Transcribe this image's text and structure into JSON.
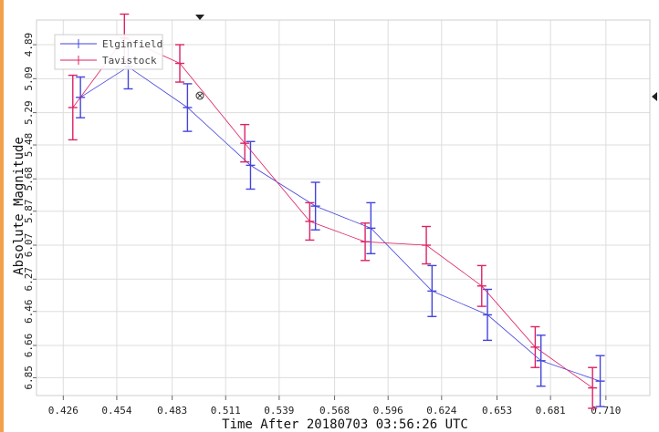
{
  "chart_data": {
    "type": "line",
    "xlabel": "Time After 20180703 03:56:26 UTC",
    "ylabel": "Absolute Magnitude",
    "x_ticks": [
      "0.426",
      "0.454",
      "0.483",
      "0.511",
      "0.539",
      "0.568",
      "0.596",
      "0.624",
      "0.653",
      "0.681",
      "0.710"
    ],
    "y_ticks": [
      "4.89",
      "5.09",
      "5.29",
      "5.48",
      "5.68",
      "5.87",
      "6.07",
      "6.27",
      "6.46",
      "6.66",
      "6.85"
    ],
    "xlim": [
      0.412,
      0.733
    ],
    "ylim": [
      4.745,
      6.955
    ],
    "y_inverted": true,
    "grid": true,
    "legend_position": "top-left",
    "series": [
      {
        "name": "Elginfield",
        "color": "#4444dd",
        "points": [
          {
            "x": 0.435,
            "y": 5.2,
            "err": 0.12
          },
          {
            "x": 0.46,
            "y": 5.02,
            "err": 0.13
          },
          {
            "x": 0.491,
            "y": 5.26,
            "err": 0.14
          },
          {
            "x": 0.524,
            "y": 5.6,
            "err": 0.14
          },
          {
            "x": 0.558,
            "y": 5.84,
            "err": 0.14
          },
          {
            "x": 0.587,
            "y": 5.97,
            "err": 0.15
          },
          {
            "x": 0.619,
            "y": 6.34,
            "err": 0.15
          },
          {
            "x": 0.648,
            "y": 6.48,
            "err": 0.15
          },
          {
            "x": 0.676,
            "y": 6.75,
            "err": 0.15
          },
          {
            "x": 0.707,
            "y": 6.87,
            "err": 0.15
          }
        ]
      },
      {
        "name": "Tavistock",
        "color": "#dd2266",
        "points": [
          {
            "x": 0.431,
            "y": 5.26,
            "err": 0.19
          },
          {
            "x": 0.458,
            "y": 4.85,
            "err": 0.14
          },
          {
            "x": 0.487,
            "y": 5.0,
            "err": 0.11
          },
          {
            "x": 0.521,
            "y": 5.47,
            "err": 0.11
          },
          {
            "x": 0.555,
            "y": 5.93,
            "err": 0.11
          },
          {
            "x": 0.584,
            "y": 6.05,
            "err": 0.11
          },
          {
            "x": 0.616,
            "y": 6.07,
            "err": 0.11
          },
          {
            "x": 0.645,
            "y": 6.31,
            "err": 0.12
          },
          {
            "x": 0.673,
            "y": 6.67,
            "err": 0.12
          },
          {
            "x": 0.703,
            "y": 6.91,
            "err": 0.12
          }
        ]
      }
    ]
  }
}
